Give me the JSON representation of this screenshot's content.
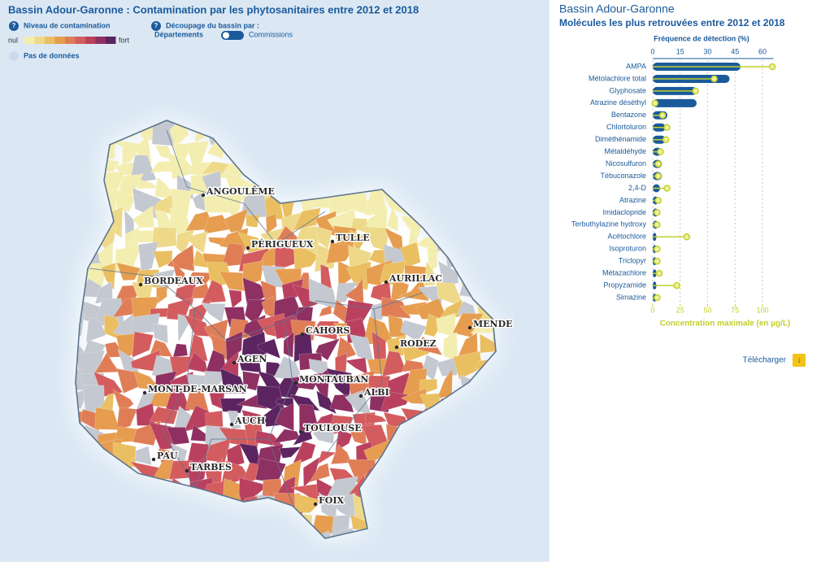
{
  "map": {
    "title": "Bassin Adour-Garonne : Contamination par les phytosanitaires entre 2012 et 2018",
    "legend": {
      "label": "Niveau de contamination",
      "low": "nul",
      "high": "fort",
      "colors": [
        "#f3eeb0",
        "#eed98a",
        "#eabf62",
        "#e69d50",
        "#df7e56",
        "#d35c5e",
        "#b9415f",
        "#8e3062",
        "#5c2460"
      ],
      "no_data": "Pas de données",
      "no_data_color": "#cdd9ec"
    },
    "split": {
      "label": "Découpage du bassin par :",
      "options": [
        "Départements",
        "Commissions"
      ]
    },
    "cities": [
      "ANGOULÊME",
      "PÉRIGUEUX",
      "TULLE",
      "BORDEAUX",
      "AURILLAC",
      "CAHORS",
      "MENDE",
      "RODEZ",
      "AGEN",
      "MONTAUBAN",
      "MONT-DE-MARSAN",
      "ALBI",
      "AUCH",
      "TOULOUSE",
      "PAU",
      "TARBES",
      "FOIX"
    ]
  },
  "panel": {
    "title": "Bassin Adour-Garonne",
    "subtitle": "Molécules les plus retrouvées entre 2012 et 2018",
    "download": "Télécharger"
  },
  "chart_data": {
    "type": "bar",
    "categories": [
      "AMPA",
      "Métolachlore total",
      "Glyphosate",
      "Atrazine déséthyl",
      "Bentazone",
      "Chlortoluron",
      "Diméthénamide",
      "Métaldéhyde",
      "Nicosulfuron",
      "Tébuconazole",
      "2,4-D",
      "Atrazine",
      "Imidaclopride",
      "Terbuthylazine hydroxy",
      "Acétochlore",
      "Isoproturon",
      "Triclopyr",
      "Métazachlore",
      "Propyzamide",
      "Simazine"
    ],
    "series": [
      {
        "name": "Fréquence de détection (%)",
        "color": "#1a5a9b",
        "values": [
          48,
          42,
          24,
          24,
          8,
          7,
          7,
          5,
          5,
          5,
          4,
          3,
          3,
          3,
          2,
          2,
          2,
          2,
          2,
          2
        ]
      },
      {
        "name": "Concentration maximale (en µg/L)",
        "color": "#c3cf2c",
        "axis": "x2",
        "values": [
          109,
          56,
          39,
          2,
          9,
          13,
          12,
          7,
          5,
          5,
          13,
          5,
          4,
          4,
          31,
          4,
          4,
          6,
          22,
          4
        ]
      }
    ],
    "xlim": [
      0,
      66
    ],
    "xticks": [
      0,
      15,
      30,
      45,
      60
    ],
    "x2lim": [
      0,
      110
    ],
    "x2ticks": [
      0,
      25,
      50,
      75,
      100
    ],
    "grid": true
  }
}
